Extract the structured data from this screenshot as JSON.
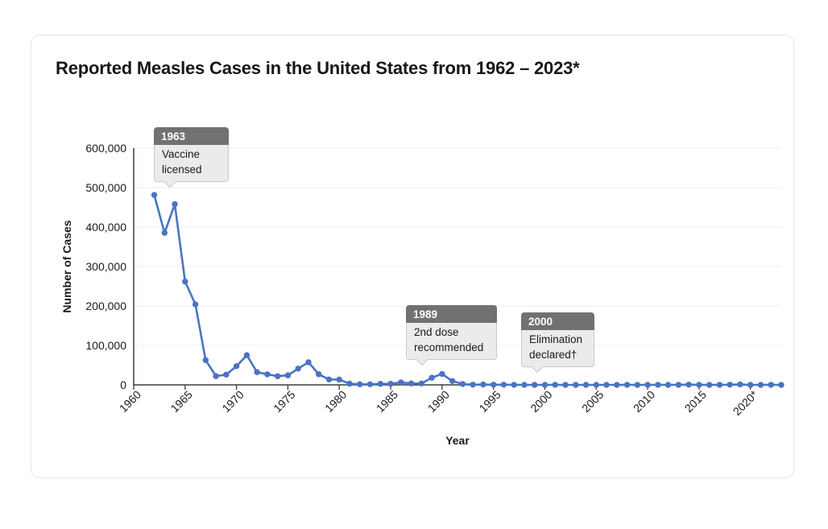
{
  "chart_data": {
    "type": "line",
    "title": "Reported Measles Cases in the United States from 1962 – 2023*",
    "xlabel": "Year",
    "ylabel": "Number of Cases",
    "series_name": "Reported measles cases",
    "x": [
      1962,
      1963,
      1964,
      1965,
      1966,
      1967,
      1968,
      1969,
      1970,
      1971,
      1972,
      1973,
      1974,
      1975,
      1976,
      1977,
      1978,
      1979,
      1980,
      1981,
      1982,
      1983,
      1984,
      1985,
      1986,
      1987,
      1988,
      1989,
      1990,
      1991,
      1992,
      1993,
      1994,
      1995,
      1996,
      1997,
      1998,
      1999,
      2000,
      2001,
      2002,
      2003,
      2004,
      2005,
      2006,
      2007,
      2008,
      2009,
      2010,
      2011,
      2012,
      2013,
      2014,
      2015,
      2016,
      2017,
      2018,
      2019,
      2020,
      2021,
      2022,
      2023
    ],
    "values": [
      481530,
      385156,
      458083,
      261904,
      204136,
      62705,
      22231,
      25826,
      47351,
      75290,
      32275,
      26690,
      22094,
      24374,
      41126,
      57345,
      26871,
      13597,
      13506,
      3124,
      1714,
      1497,
      2587,
      2822,
      6282,
      3655,
      3396,
      18193,
      27786,
      9643,
      2237,
      312,
      963,
      309,
      508,
      138,
      100,
      100,
      86,
      116,
      44,
      56,
      37,
      66,
      55,
      43,
      140,
      71,
      63,
      220,
      55,
      187,
      667,
      188,
      86,
      120,
      375,
      1282,
      13,
      49,
      121,
      59
    ],
    "xlim": [
      1960,
      2023
    ],
    "ylim": [
      0,
      600000
    ],
    "xticks": {
      "values": [
        1960,
        1965,
        1970,
        1975,
        1980,
        1985,
        1990,
        1995,
        2000,
        2005,
        2010,
        2015,
        2020
      ],
      "labels": [
        "1960",
        "1965",
        "1970",
        "1975",
        "1980",
        "1985",
        "1990",
        "1995",
        "2000",
        "2005",
        "2010",
        "2015",
        "2020*"
      ]
    },
    "yticks": {
      "values": [
        0,
        100000,
        200000,
        300000,
        400000,
        500000,
        600000
      ],
      "labels": [
        "0",
        "100,000",
        "200,000",
        "300,000",
        "400,000",
        "500,000",
        "600,000"
      ]
    },
    "grid": "horizontal-only",
    "legend": "none",
    "marker": "circle",
    "line_color": "#4a73c4",
    "axis_color": "#3c3c3c",
    "grid_color": "#ececec",
    "annotations": [
      {
        "year": "1963",
        "text": "Vaccine licensed"
      },
      {
        "year": "1989",
        "text": "2nd dose recommended"
      },
      {
        "year": "2000",
        "text": "Elimination declared†"
      }
    ]
  }
}
